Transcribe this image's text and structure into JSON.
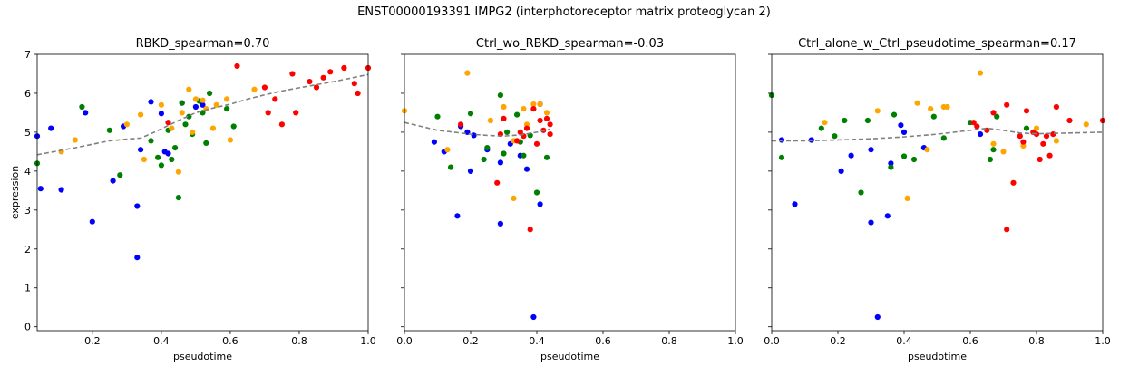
{
  "figure_title": "ENST00000193391  IMPG2  (interphotoreceptor matrix proteoglycan 2)",
  "colors": {
    "blue": "#0000ff",
    "green": "#008000",
    "orange": "#ffa500",
    "red": "#ff0000",
    "trend": "#808080"
  },
  "chart_data": [
    {
      "type": "scatter",
      "title": "RBKD_spearman=0.70",
      "xlabel": "pseudotime",
      "ylabel": "expression",
      "xlim": [
        0.04,
        1.0
      ],
      "ylim": [
        -0.1,
        7.0
      ],
      "xticks": [
        "0.2",
        "0.4",
        "0.6",
        "0.8",
        "1.0"
      ],
      "yticks": [
        "0",
        "1",
        "2",
        "3",
        "4",
        "5",
        "6",
        "7"
      ],
      "points": {
        "blue": [
          [
            0.04,
            4.9
          ],
          [
            0.05,
            3.55
          ],
          [
            0.08,
            5.1
          ],
          [
            0.11,
            3.52
          ],
          [
            0.18,
            5.5
          ],
          [
            0.2,
            2.7
          ],
          [
            0.26,
            3.75
          ],
          [
            0.29,
            5.15
          ],
          [
            0.33,
            3.1
          ],
          [
            0.33,
            1.78
          ],
          [
            0.34,
            4.55
          ],
          [
            0.37,
            5.78
          ],
          [
            0.4,
            5.48
          ],
          [
            0.41,
            4.5
          ],
          [
            0.42,
            4.45
          ],
          [
            0.46,
            5.75
          ],
          [
            0.5,
            5.65
          ],
          [
            0.52,
            5.7
          ]
        ],
        "green": [
          [
            0.04,
            4.2
          ],
          [
            0.17,
            5.65
          ],
          [
            0.25,
            5.05
          ],
          [
            0.28,
            3.9
          ],
          [
            0.37,
            4.78
          ],
          [
            0.39,
            4.35
          ],
          [
            0.4,
            4.15
          ],
          [
            0.42,
            5.05
          ],
          [
            0.43,
            4.3
          ],
          [
            0.44,
            4.6
          ],
          [
            0.45,
            3.32
          ],
          [
            0.46,
            5.75
          ],
          [
            0.47,
            5.2
          ],
          [
            0.48,
            5.4
          ],
          [
            0.49,
            4.95
          ],
          [
            0.51,
            5.8
          ],
          [
            0.52,
            5.5
          ],
          [
            0.53,
            4.72
          ],
          [
            0.54,
            6.0
          ],
          [
            0.59,
            5.6
          ],
          [
            0.61,
            5.15
          ]
        ],
        "orange": [
          [
            0.11,
            4.5
          ],
          [
            0.15,
            4.8
          ],
          [
            0.3,
            5.2
          ],
          [
            0.34,
            5.45
          ],
          [
            0.35,
            4.3
          ],
          [
            0.4,
            5.7
          ],
          [
            0.43,
            5.1
          ],
          [
            0.45,
            3.98
          ],
          [
            0.46,
            5.5
          ],
          [
            0.48,
            6.1
          ],
          [
            0.49,
            5.0
          ],
          [
            0.5,
            5.85
          ],
          [
            0.52,
            5.82
          ],
          [
            0.53,
            5.6
          ],
          [
            0.55,
            5.1
          ],
          [
            0.56,
            5.7
          ],
          [
            0.59,
            5.85
          ],
          [
            0.6,
            4.8
          ],
          [
            0.67,
            6.1
          ]
        ],
        "red": [
          [
            0.42,
            5.25
          ],
          [
            0.62,
            6.7
          ],
          [
            0.7,
            6.15
          ],
          [
            0.71,
            5.5
          ],
          [
            0.73,
            5.85
          ],
          [
            0.75,
            5.2
          ],
          [
            0.78,
            6.5
          ],
          [
            0.79,
            5.5
          ],
          [
            0.83,
            6.3
          ],
          [
            0.85,
            6.15
          ],
          [
            0.87,
            6.4
          ],
          [
            0.89,
            6.55
          ],
          [
            0.93,
            6.65
          ],
          [
            0.96,
            6.25
          ],
          [
            0.97,
            6.0
          ],
          [
            1.0,
            6.65
          ]
        ]
      },
      "trend": [
        [
          0.04,
          4.42
        ],
        [
          0.15,
          4.6
        ],
        [
          0.25,
          4.78
        ],
        [
          0.3,
          4.82
        ],
        [
          0.34,
          4.85
        ],
        [
          0.38,
          5.0
        ],
        [
          0.45,
          5.3
        ],
        [
          0.5,
          5.5
        ],
        [
          0.55,
          5.62
        ],
        [
          0.6,
          5.72
        ],
        [
          0.65,
          5.85
        ],
        [
          0.7,
          5.96
        ],
        [
          0.75,
          6.06
        ],
        [
          0.8,
          6.14
        ],
        [
          0.9,
          6.3
        ],
        [
          1.0,
          6.48
        ]
      ]
    },
    {
      "type": "scatter",
      "title": "Ctrl_wo_RBKD_spearman=-0.03",
      "xlabel": "pseudotime",
      "ylabel": "",
      "xlim": [
        0.0,
        1.0
      ],
      "ylim": [
        -0.1,
        7.0
      ],
      "xticks": [
        "0.0",
        "0.2",
        "0.4",
        "0.6",
        "0.8",
        "1.0"
      ],
      "yticks": [],
      "points": {
        "blue": [
          [
            0.09,
            4.75
          ],
          [
            0.12,
            4.5
          ],
          [
            0.16,
            2.85
          ],
          [
            0.17,
            5.15
          ],
          [
            0.19,
            5.0
          ],
          [
            0.2,
            4.0
          ],
          [
            0.21,
            4.92
          ],
          [
            0.25,
            4.55
          ],
          [
            0.29,
            2.65
          ],
          [
            0.29,
            4.22
          ],
          [
            0.32,
            4.7
          ],
          [
            0.35,
            4.4
          ],
          [
            0.37,
            4.05
          ],
          [
            0.39,
            0.25
          ],
          [
            0.41,
            3.15
          ],
          [
            0.41,
            5.72
          ]
        ],
        "green": [
          [
            0.1,
            5.4
          ],
          [
            0.14,
            4.1
          ],
          [
            0.2,
            5.48
          ],
          [
            0.24,
            4.3
          ],
          [
            0.25,
            4.6
          ],
          [
            0.29,
            5.95
          ],
          [
            0.3,
            4.45
          ],
          [
            0.31,
            5.0
          ],
          [
            0.34,
            5.45
          ],
          [
            0.35,
            4.75
          ],
          [
            0.36,
            4.4
          ],
          [
            0.38,
            4.92
          ],
          [
            0.4,
            3.45
          ],
          [
            0.43,
            4.35
          ]
        ],
        "orange": [
          [
            0.0,
            5.55
          ],
          [
            0.13,
            4.55
          ],
          [
            0.19,
            6.52
          ],
          [
            0.26,
            5.3
          ],
          [
            0.3,
            5.65
          ],
          [
            0.33,
            3.3
          ],
          [
            0.36,
            5.6
          ],
          [
            0.37,
            5.2
          ],
          [
            0.39,
            5.72
          ],
          [
            0.41,
            5.72
          ],
          [
            0.43,
            5.5
          ],
          [
            0.33,
            4.78
          ]
        ],
        "red": [
          [
            0.17,
            5.2
          ],
          [
            0.28,
            3.7
          ],
          [
            0.29,
            4.95
          ],
          [
            0.3,
            5.35
          ],
          [
            0.34,
            4.78
          ],
          [
            0.35,
            5.0
          ],
          [
            0.36,
            4.9
          ],
          [
            0.37,
            5.1
          ],
          [
            0.38,
            2.5
          ],
          [
            0.39,
            5.6
          ],
          [
            0.4,
            4.7
          ],
          [
            0.41,
            5.3
          ],
          [
            0.42,
            5.05
          ],
          [
            0.43,
            5.35
          ],
          [
            0.44,
            4.95
          ],
          [
            0.44,
            5.2
          ]
        ]
      },
      "trend": [
        [
          0.0,
          5.25
        ],
        [
          0.05,
          5.15
        ],
        [
          0.1,
          5.05
        ],
        [
          0.15,
          5.0
        ],
        [
          0.2,
          4.95
        ],
        [
          0.25,
          4.92
        ],
        [
          0.3,
          4.9
        ],
        [
          0.35,
          4.93
        ],
        [
          0.4,
          5.0
        ],
        [
          0.44,
          5.08
        ]
      ]
    },
    {
      "type": "scatter",
      "title": "Ctrl_alone_w_Ctrl_pseudotime_spearman=0.17",
      "xlabel": "pseudotime",
      "ylabel": "",
      "xlim": [
        0.0,
        1.0
      ],
      "ylim": [
        -0.1,
        7.0
      ],
      "xticks": [
        "0.0",
        "0.2",
        "0.4",
        "0.6",
        "0.8",
        "1.0"
      ],
      "yticks": [],
      "points": {
        "blue": [
          [
            0.03,
            4.8
          ],
          [
            0.07,
            3.15
          ],
          [
            0.12,
            4.8
          ],
          [
            0.21,
            4.0
          ],
          [
            0.24,
            4.4
          ],
          [
            0.3,
            2.68
          ],
          [
            0.3,
            4.55
          ],
          [
            0.32,
            0.25
          ],
          [
            0.35,
            2.85
          ],
          [
            0.36,
            4.2
          ],
          [
            0.39,
            5.18
          ],
          [
            0.4,
            5.0
          ],
          [
            0.46,
            4.6
          ],
          [
            0.63,
            4.95
          ]
        ],
        "green": [
          [
            0.0,
            5.95
          ],
          [
            0.03,
            4.35
          ],
          [
            0.15,
            5.1
          ],
          [
            0.19,
            4.9
          ],
          [
            0.22,
            5.3
          ],
          [
            0.27,
            3.45
          ],
          [
            0.29,
            5.3
          ],
          [
            0.36,
            4.1
          ],
          [
            0.37,
            5.45
          ],
          [
            0.4,
            4.38
          ],
          [
            0.43,
            4.3
          ],
          [
            0.49,
            5.4
          ],
          [
            0.52,
            4.85
          ],
          [
            0.6,
            5.25
          ],
          [
            0.66,
            4.3
          ],
          [
            0.67,
            4.55
          ],
          [
            0.68,
            5.4
          ],
          [
            0.77,
            5.1
          ]
        ],
        "orange": [
          [
            0.16,
            5.25
          ],
          [
            0.32,
            5.55
          ],
          [
            0.41,
            3.3
          ],
          [
            0.44,
            5.75
          ],
          [
            0.47,
            4.55
          ],
          [
            0.48,
            5.6
          ],
          [
            0.52,
            5.65
          ],
          [
            0.53,
            5.65
          ],
          [
            0.63,
            6.52
          ],
          [
            0.67,
            4.7
          ],
          [
            0.7,
            4.5
          ],
          [
            0.76,
            4.65
          ],
          [
            0.8,
            5.1
          ],
          [
            0.86,
            4.78
          ],
          [
            0.95,
            5.2
          ]
        ],
        "red": [
          [
            0.61,
            5.25
          ],
          [
            0.62,
            5.15
          ],
          [
            0.65,
            5.05
          ],
          [
            0.67,
            5.5
          ],
          [
            0.71,
            5.7
          ],
          [
            0.71,
            2.5
          ],
          [
            0.73,
            3.7
          ],
          [
            0.75,
            4.9
          ],
          [
            0.76,
            4.75
          ],
          [
            0.77,
            5.55
          ],
          [
            0.79,
            5.0
          ],
          [
            0.8,
            4.95
          ],
          [
            0.81,
            4.3
          ],
          [
            0.82,
            4.7
          ],
          [
            0.83,
            4.9
          ],
          [
            0.84,
            4.4
          ],
          [
            0.85,
            4.95
          ],
          [
            0.86,
            5.65
          ],
          [
            0.9,
            5.3
          ],
          [
            1.0,
            5.3
          ]
        ]
      },
      "trend": [
        [
          0.0,
          4.78
        ],
        [
          0.1,
          4.78
        ],
        [
          0.2,
          4.8
        ],
        [
          0.3,
          4.83
        ],
        [
          0.4,
          4.88
        ],
        [
          0.5,
          4.95
        ],
        [
          0.6,
          5.05
        ],
        [
          0.65,
          5.1
        ],
        [
          0.7,
          5.05
        ],
        [
          0.75,
          4.98
        ],
        [
          0.8,
          4.96
        ],
        [
          0.9,
          4.98
        ],
        [
          1.0,
          5.0
        ]
      ]
    }
  ]
}
